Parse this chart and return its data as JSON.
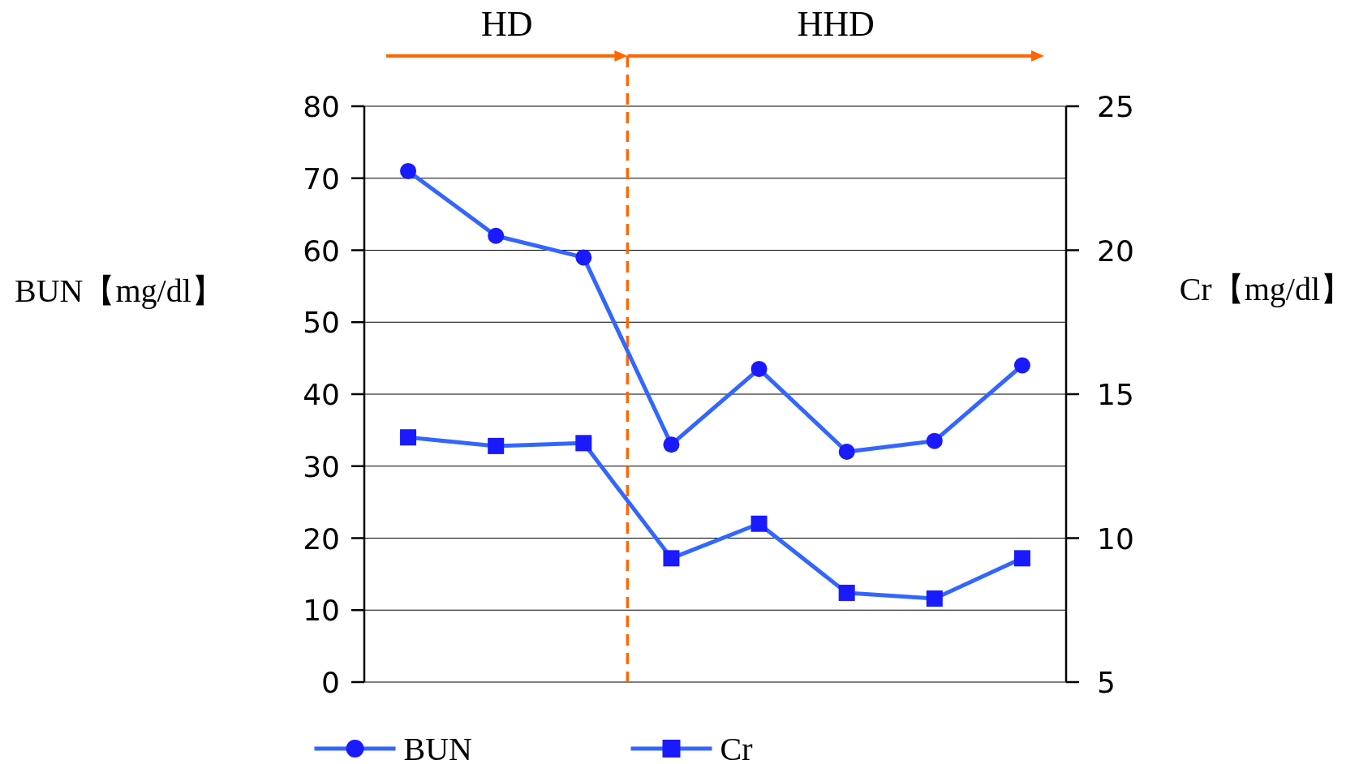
{
  "chart_data": {
    "type": "line",
    "categories": [
      null,
      null,
      null,
      null,
      null,
      null,
      null,
      null
    ],
    "ylabel": "BUN【mg/dl】",
    "y2label": "Cr【mg/dl】",
    "ylim": [
      0,
      80
    ],
    "yticks": [
      0,
      10,
      20,
      30,
      40,
      50,
      60,
      70,
      80
    ],
    "y2lim": [
      5,
      25
    ],
    "y2ticks": [
      5,
      10,
      15,
      20,
      25
    ],
    "grid": "y",
    "legend": "bottom",
    "series": [
      {
        "name": "BUN",
        "color": "#3366ff",
        "marker": "circle",
        "values": [
          71,
          62,
          59,
          33,
          43.5,
          32,
          33.5,
          44
        ]
      },
      {
        "name": "Cr",
        "color": "#3366ff",
        "marker": "square",
        "axis": "y2",
        "values": [
          13.5,
          13.2,
          13.3,
          9.3,
          10.5,
          8.1,
          7.9,
          9.3
        ]
      }
    ],
    "annotations": [
      "HD",
      "HHD"
    ]
  }
}
